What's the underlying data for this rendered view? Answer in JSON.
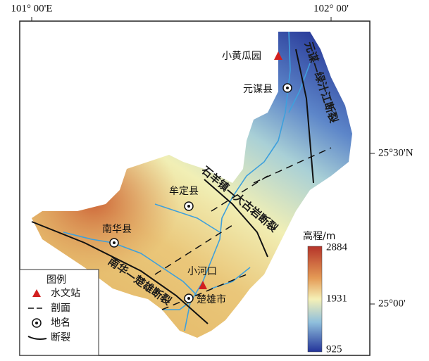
{
  "frame": {
    "top_labels": [
      "101° 00'E",
      "102° 00'"
    ],
    "right_labels": [
      "25°30'N",
      "25°00'"
    ]
  },
  "places": [
    "小黄瓜园",
    "元谋县",
    "牟定县",
    "南华县",
    "小河口",
    "楚雄市"
  ],
  "faults": [
    "元谋—绿汁江断裂",
    "石羊镇—大古岩断裂",
    "南华—楚雄断裂"
  ],
  "legend": {
    "title": "图例",
    "items": [
      "水文站",
      "剖面",
      "地名",
      "断裂"
    ]
  },
  "colorbar": {
    "title": "高程/m",
    "labels": [
      2884,
      1931,
      925
    ]
  }
}
